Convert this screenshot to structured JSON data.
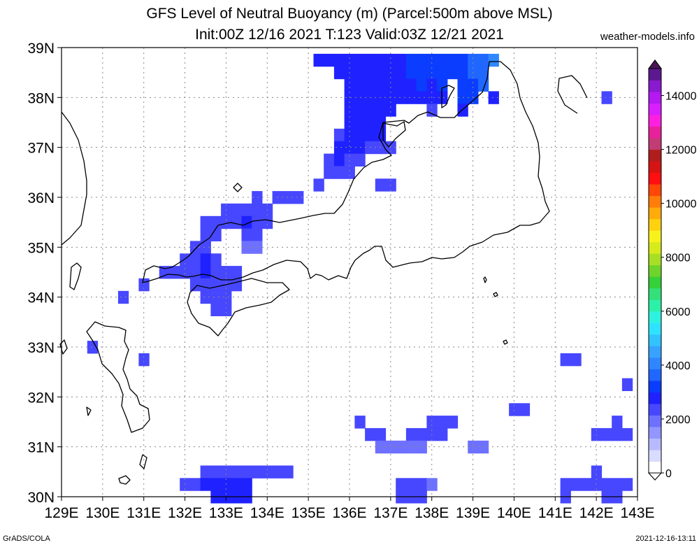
{
  "title_line1": "GFS Level of Neutral Buoyancy (m) (Parcel:500m above MSL)",
  "title_line2": "Init:00Z 12/16 2021 T:123 Valid:03Z 12/21 2021",
  "site": "weather-models.info",
  "footer_left": "GrADS/COLA",
  "footer_right": "2021-12-16-13:11",
  "chart_data": {
    "type": "heatmap",
    "x_ticks": [
      "129E",
      "130E",
      "131E",
      "132E",
      "133E",
      "134E",
      "135E",
      "136E",
      "137E",
      "138E",
      "139E",
      "140E",
      "141E",
      "142E",
      "143E"
    ],
    "y_ticks": [
      "30N",
      "31N",
      "32N",
      "33N",
      "34N",
      "35N",
      "36N",
      "37N",
      "38N",
      "39N"
    ],
    "lon_range": [
      129,
      143
    ],
    "lat_range": [
      30,
      39
    ],
    "grid": true,
    "colorbar": {
      "placement": "right",
      "min": 0,
      "max": 15000,
      "labels": [
        "0",
        "2000",
        "4000",
        "6000",
        "8000",
        "10000",
        "12000",
        "14000"
      ],
      "colors": [
        "#ffffff",
        "#d9dcff",
        "#b7baff",
        "#9396ff",
        "#6e71ff",
        "#4747ff",
        "#1f22ff",
        "#0b3dff",
        "#1f67ff",
        "#2f87ff",
        "#37a3ff",
        "#32c3ff",
        "#2ee3ff",
        "#2ef2e0",
        "#2df0a8",
        "#33e07a",
        "#35d13a",
        "#6ed32b",
        "#a8df24",
        "#d6ea1c",
        "#f7f21b",
        "#ffd10f",
        "#ffac0a",
        "#ff7d08",
        "#ff4708",
        "#ff0f0f",
        "#d61414",
        "#b01d1d",
        "#c23c74",
        "#e8209b",
        "#ff1fe0",
        "#d91fff",
        "#b319f0",
        "#8a1ad0",
        "#5c188f"
      ]
    },
    "cells": [
      {
        "lon": 135.25,
        "lat": 38.75,
        "v": 2600
      },
      {
        "lon": 135.5,
        "lat": 38.75,
        "v": 2600
      },
      {
        "lon": 135.75,
        "lat": 38.75,
        "v": 2700
      },
      {
        "lon": 136.0,
        "lat": 38.75,
        "v": 2700
      },
      {
        "lon": 136.25,
        "lat": 38.75,
        "v": 2800
      },
      {
        "lon": 136.5,
        "lat": 38.75,
        "v": 2800
      },
      {
        "lon": 136.75,
        "lat": 38.75,
        "v": 2800
      },
      {
        "lon": 137.0,
        "lat": 38.75,
        "v": 2900
      },
      {
        "lon": 137.25,
        "lat": 38.75,
        "v": 2900
      },
      {
        "lon": 137.5,
        "lat": 38.75,
        "v": 3000
      },
      {
        "lon": 137.75,
        "lat": 38.75,
        "v": 3000
      },
      {
        "lon": 138.0,
        "lat": 38.75,
        "v": 3100
      },
      {
        "lon": 138.25,
        "lat": 38.75,
        "v": 3200
      },
      {
        "lon": 138.5,
        "lat": 38.75,
        "v": 3300
      },
      {
        "lon": 138.75,
        "lat": 38.75,
        "v": 3400
      },
      {
        "lon": 139.0,
        "lat": 38.75,
        "v": 3500
      },
      {
        "lon": 139.25,
        "lat": 38.75,
        "v": 3700
      },
      {
        "lon": 139.5,
        "lat": 38.75,
        "v": 3900
      },
      {
        "lon": 135.75,
        "lat": 38.5,
        "v": 2600
      },
      {
        "lon": 136.0,
        "lat": 38.5,
        "v": 2700
      },
      {
        "lon": 136.25,
        "lat": 38.5,
        "v": 2700
      },
      {
        "lon": 136.5,
        "lat": 38.5,
        "v": 2800
      },
      {
        "lon": 136.75,
        "lat": 38.5,
        "v": 2700
      },
      {
        "lon": 137.0,
        "lat": 38.5,
        "v": 2800
      },
      {
        "lon": 137.25,
        "lat": 38.5,
        "v": 2900
      },
      {
        "lon": 137.5,
        "lat": 38.5,
        "v": 3000
      },
      {
        "lon": 137.75,
        "lat": 38.5,
        "v": 3000
      },
      {
        "lon": 138.0,
        "lat": 38.5,
        "v": 3000
      },
      {
        "lon": 138.25,
        "lat": 38.5,
        "v": 3100
      },
      {
        "lon": 138.5,
        "lat": 38.5,
        "v": 3200
      },
      {
        "lon": 138.75,
        "lat": 38.5,
        "v": 3300
      },
      {
        "lon": 139.0,
        "lat": 38.5,
        "v": 3500
      },
      {
        "lon": 139.25,
        "lat": 38.5,
        "v": 3600
      },
      {
        "lon": 136.0,
        "lat": 38.25,
        "v": 2600
      },
      {
        "lon": 136.25,
        "lat": 38.25,
        "v": 2700
      },
      {
        "lon": 136.5,
        "lat": 38.25,
        "v": 2800
      },
      {
        "lon": 136.75,
        "lat": 38.25,
        "v": 2700
      },
      {
        "lon": 137.0,
        "lat": 38.25,
        "v": 2800
      },
      {
        "lon": 137.25,
        "lat": 38.25,
        "v": 2900
      },
      {
        "lon": 137.5,
        "lat": 38.25,
        "v": 2900
      },
      {
        "lon": 137.75,
        "lat": 38.25,
        "v": 3000
      },
      {
        "lon": 138.0,
        "lat": 38.25,
        "v": 2900
      },
      {
        "lon": 138.25,
        "lat": 38.25,
        "v": 3000
      },
      {
        "lon": 138.75,
        "lat": 38.25,
        "v": 3200
      },
      {
        "lon": 139.0,
        "lat": 38.25,
        "v": 3400
      },
      {
        "lon": 139.25,
        "lat": 38.25,
        "v": 3500
      },
      {
        "lon": 136.0,
        "lat": 38.0,
        "v": 2600
      },
      {
        "lon": 136.25,
        "lat": 38.0,
        "v": 2700
      },
      {
        "lon": 136.5,
        "lat": 38.0,
        "v": 2800
      },
      {
        "lon": 136.75,
        "lat": 38.0,
        "v": 2800
      },
      {
        "lon": 137.0,
        "lat": 38.0,
        "v": 2700
      },
      {
        "lon": 137.25,
        "lat": 38.0,
        "v": 2700
      },
      {
        "lon": 137.5,
        "lat": 38.0,
        "v": 2800
      },
      {
        "lon": 137.75,
        "lat": 38.0,
        "v": 2800
      },
      {
        "lon": 138.0,
        "lat": 38.0,
        "v": 2800
      },
      {
        "lon": 138.25,
        "lat": 38.0,
        "v": 2900
      },
      {
        "lon": 138.75,
        "lat": 38.0,
        "v": 3100
      },
      {
        "lon": 139.0,
        "lat": 38.0,
        "v": 3200
      },
      {
        "lon": 139.5,
        "lat": 38.0,
        "v": 2600
      },
      {
        "lon": 142.25,
        "lat": 38.0,
        "v": 2200
      },
      {
        "lon": 136.0,
        "lat": 37.75,
        "v": 2600
      },
      {
        "lon": 136.25,
        "lat": 37.75,
        "v": 2700
      },
      {
        "lon": 136.5,
        "lat": 37.75,
        "v": 2800
      },
      {
        "lon": 136.75,
        "lat": 37.75,
        "v": 2700
      },
      {
        "lon": 137.0,
        "lat": 37.75,
        "v": 2600
      },
      {
        "lon": 138.0,
        "lat": 37.75,
        "v": 2500
      },
      {
        "lon": 138.75,
        "lat": 37.75,
        "v": 2800
      },
      {
        "lon": 136.0,
        "lat": 37.5,
        "v": 2600
      },
      {
        "lon": 136.25,
        "lat": 37.5,
        "v": 2700
      },
      {
        "lon": 136.5,
        "lat": 37.5,
        "v": 2800
      },
      {
        "lon": 136.75,
        "lat": 37.5,
        "v": 2700
      },
      {
        "lon": 135.75,
        "lat": 37.25,
        "v": 2500
      },
      {
        "lon": 136.0,
        "lat": 37.25,
        "v": 2700
      },
      {
        "lon": 136.25,
        "lat": 37.25,
        "v": 2800
      },
      {
        "lon": 136.5,
        "lat": 37.25,
        "v": 2700
      },
      {
        "lon": 136.75,
        "lat": 37.25,
        "v": 2600
      },
      {
        "lon": 135.75,
        "lat": 37.0,
        "v": 2600
      },
      {
        "lon": 136.0,
        "lat": 37.0,
        "v": 2700
      },
      {
        "lon": 136.25,
        "lat": 37.0,
        "v": 2600
      },
      {
        "lon": 136.5,
        "lat": 37.0,
        "v": 2500
      },
      {
        "lon": 136.75,
        "lat": 37.0,
        "v": 2400
      },
      {
        "lon": 137.0,
        "lat": 37.0,
        "v": 2200
      },
      {
        "lon": 135.5,
        "lat": 36.75,
        "v": 2500
      },
      {
        "lon": 135.75,
        "lat": 36.75,
        "v": 2600
      },
      {
        "lon": 136.0,
        "lat": 36.75,
        "v": 2500
      },
      {
        "lon": 136.25,
        "lat": 36.75,
        "v": 2500
      },
      {
        "lon": 135.5,
        "lat": 36.5,
        "v": 2400
      },
      {
        "lon": 135.75,
        "lat": 36.5,
        "v": 2500
      },
      {
        "lon": 136.0,
        "lat": 36.5,
        "v": 2400
      },
      {
        "lon": 135.25,
        "lat": 36.25,
        "v": 2300
      },
      {
        "lon": 136.75,
        "lat": 36.25,
        "v": 2300
      },
      {
        "lon": 137.0,
        "lat": 36.25,
        "v": 2300
      },
      {
        "lon": 134.25,
        "lat": 36.0,
        "v": 2200
      },
      {
        "lon": 134.5,
        "lat": 36.0,
        "v": 2300
      },
      {
        "lon": 134.75,
        "lat": 36.0,
        "v": 2200
      },
      {
        "lon": 133.75,
        "lat": 36.0,
        "v": 2400
      },
      {
        "lon": 133.0,
        "lat": 35.75,
        "v": 2300
      },
      {
        "lon": 133.25,
        "lat": 35.75,
        "v": 2400
      },
      {
        "lon": 133.5,
        "lat": 35.75,
        "v": 2500
      },
      {
        "lon": 133.75,
        "lat": 35.75,
        "v": 2400
      },
      {
        "lon": 134.0,
        "lat": 35.75,
        "v": 2400
      },
      {
        "lon": 132.5,
        "lat": 35.5,
        "v": 2300
      },
      {
        "lon": 132.75,
        "lat": 35.5,
        "v": 2400
      },
      {
        "lon": 133.0,
        "lat": 35.5,
        "v": 2500
      },
      {
        "lon": 133.25,
        "lat": 35.5,
        "v": 2500
      },
      {
        "lon": 133.5,
        "lat": 35.5,
        "v": 2600
      },
      {
        "lon": 133.75,
        "lat": 35.5,
        "v": 2500
      },
      {
        "lon": 134.0,
        "lat": 35.5,
        "v": 2400
      },
      {
        "lon": 132.5,
        "lat": 35.25,
        "v": 2400
      },
      {
        "lon": 132.75,
        "lat": 35.25,
        "v": 2400
      },
      {
        "lon": 133.5,
        "lat": 35.25,
        "v": 2300
      },
      {
        "lon": 133.75,
        "lat": 35.25,
        "v": 2400
      },
      {
        "lon": 132.25,
        "lat": 35.0,
        "v": 2400
      },
      {
        "lon": 132.5,
        "lat": 35.0,
        "v": 2500
      },
      {
        "lon": 133.5,
        "lat": 35.0,
        "v": 2000
      },
      {
        "lon": 133.75,
        "lat": 35.0,
        "v": 2100
      },
      {
        "lon": 132.0,
        "lat": 34.75,
        "v": 2400
      },
      {
        "lon": 132.25,
        "lat": 34.75,
        "v": 2500
      },
      {
        "lon": 132.5,
        "lat": 34.75,
        "v": 2600
      },
      {
        "lon": 132.75,
        "lat": 34.75,
        "v": 2500
      },
      {
        "lon": 131.5,
        "lat": 34.5,
        "v": 2300
      },
      {
        "lon": 131.75,
        "lat": 34.5,
        "v": 2400
      },
      {
        "lon": 132.0,
        "lat": 34.5,
        "v": 2400
      },
      {
        "lon": 132.25,
        "lat": 34.5,
        "v": 2500
      },
      {
        "lon": 132.5,
        "lat": 34.5,
        "v": 2600
      },
      {
        "lon": 132.75,
        "lat": 34.5,
        "v": 2500
      },
      {
        "lon": 133.0,
        "lat": 34.5,
        "v": 2400
      },
      {
        "lon": 133.25,
        "lat": 34.5,
        "v": 2300
      },
      {
        "lon": 131.0,
        "lat": 34.25,
        "v": 2200
      },
      {
        "lon": 132.25,
        "lat": 34.25,
        "v": 2400
      },
      {
        "lon": 132.5,
        "lat": 34.25,
        "v": 2500
      },
      {
        "lon": 132.75,
        "lat": 34.25,
        "v": 2500
      },
      {
        "lon": 133.0,
        "lat": 34.25,
        "v": 2400
      },
      {
        "lon": 133.25,
        "lat": 34.25,
        "v": 2300
      },
      {
        "lon": 130.5,
        "lat": 34.0,
        "v": 2300
      },
      {
        "lon": 132.5,
        "lat": 34.0,
        "v": 2300
      },
      {
        "lon": 132.75,
        "lat": 34.0,
        "v": 2300
      },
      {
        "lon": 133.0,
        "lat": 34.0,
        "v": 2200
      },
      {
        "lon": 132.75,
        "lat": 33.75,
        "v": 2200
      },
      {
        "lon": 133.0,
        "lat": 33.75,
        "v": 2200
      },
      {
        "lon": 129.75,
        "lat": 33.0,
        "v": 2300
      },
      {
        "lon": 131.0,
        "lat": 32.75,
        "v": 2200
      },
      {
        "lon": 141.25,
        "lat": 32.75,
        "v": 2200
      },
      {
        "lon": 141.5,
        "lat": 32.75,
        "v": 2200
      },
      {
        "lon": 142.75,
        "lat": 32.25,
        "v": 2300
      },
      {
        "lon": 140.0,
        "lat": 31.75,
        "v": 2200
      },
      {
        "lon": 140.25,
        "lat": 31.75,
        "v": 2300
      },
      {
        "lon": 136.25,
        "lat": 31.5,
        "v": 2400
      },
      {
        "lon": 138.0,
        "lat": 31.5,
        "v": 2300
      },
      {
        "lon": 138.25,
        "lat": 31.5,
        "v": 2300
      },
      {
        "lon": 138.5,
        "lat": 31.5,
        "v": 2300
      },
      {
        "lon": 136.5,
        "lat": 31.25,
        "v": 2300
      },
      {
        "lon": 136.75,
        "lat": 31.25,
        "v": 2300
      },
      {
        "lon": 137.5,
        "lat": 31.25,
        "v": 2200
      },
      {
        "lon": 137.75,
        "lat": 31.25,
        "v": 2300
      },
      {
        "lon": 138.0,
        "lat": 31.25,
        "v": 2200
      },
      {
        "lon": 138.25,
        "lat": 31.25,
        "v": 2200
      },
      {
        "lon": 142.0,
        "lat": 31.25,
        "v": 2300
      },
      {
        "lon": 142.25,
        "lat": 31.25,
        "v": 2300
      },
      {
        "lon": 142.5,
        "lat": 31.25,
        "v": 2300
      },
      {
        "lon": 142.75,
        "lat": 31.25,
        "v": 2300
      },
      {
        "lon": 142.5,
        "lat": 31.5,
        "v": 2300
      },
      {
        "lon": 136.75,
        "lat": 31.0,
        "v": 2000
      },
      {
        "lon": 137.0,
        "lat": 31.0,
        "v": 1800
      },
      {
        "lon": 137.25,
        "lat": 31.0,
        "v": 1800
      },
      {
        "lon": 137.5,
        "lat": 31.0,
        "v": 1900
      },
      {
        "lon": 137.75,
        "lat": 31.0,
        "v": 2100
      },
      {
        "lon": 139.0,
        "lat": 31.0,
        "v": 2100
      },
      {
        "lon": 139.25,
        "lat": 31.0,
        "v": 2000
      },
      {
        "lon": 132.5,
        "lat": 30.5,
        "v": 2500
      },
      {
        "lon": 132.75,
        "lat": 30.5,
        "v": 2500
      },
      {
        "lon": 133.0,
        "lat": 30.5,
        "v": 2500
      },
      {
        "lon": 133.25,
        "lat": 30.5,
        "v": 2500
      },
      {
        "lon": 133.5,
        "lat": 30.5,
        "v": 2400
      },
      {
        "lon": 133.75,
        "lat": 30.5,
        "v": 2400
      },
      {
        "lon": 134.0,
        "lat": 30.5,
        "v": 2300
      },
      {
        "lon": 134.25,
        "lat": 30.5,
        "v": 2300
      },
      {
        "lon": 134.5,
        "lat": 30.5,
        "v": 2200
      },
      {
        "lon": 132.0,
        "lat": 30.25,
        "v": 2500
      },
      {
        "lon": 132.25,
        "lat": 30.25,
        "v": 2500
      },
      {
        "lon": 132.5,
        "lat": 30.25,
        "v": 2600
      },
      {
        "lon": 132.75,
        "lat": 30.25,
        "v": 2600
      },
      {
        "lon": 133.0,
        "lat": 30.25,
        "v": 2600
      },
      {
        "lon": 133.25,
        "lat": 30.25,
        "v": 2600
      },
      {
        "lon": 133.5,
        "lat": 30.25,
        "v": 2600
      },
      {
        "lon": 132.75,
        "lat": 30.0,
        "v": 2600
      },
      {
        "lon": 133.0,
        "lat": 30.0,
        "v": 2600
      },
      {
        "lon": 133.25,
        "lat": 30.0,
        "v": 2600
      },
      {
        "lon": 133.5,
        "lat": 30.0,
        "v": 2600
      },
      {
        "lon": 137.25,
        "lat": 30.25,
        "v": 2300
      },
      {
        "lon": 137.5,
        "lat": 30.25,
        "v": 2300
      },
      {
        "lon": 137.75,
        "lat": 30.25,
        "v": 2200
      },
      {
        "lon": 138.0,
        "lat": 30.25,
        "v": 2000
      },
      {
        "lon": 137.25,
        "lat": 30.0,
        "v": 2300
      },
      {
        "lon": 137.5,
        "lat": 30.0,
        "v": 2300
      },
      {
        "lon": 137.75,
        "lat": 30.0,
        "v": 2400
      },
      {
        "lon": 141.25,
        "lat": 30.25,
        "v": 2200
      },
      {
        "lon": 141.5,
        "lat": 30.25,
        "v": 2200
      },
      {
        "lon": 141.75,
        "lat": 30.25,
        "v": 2200
      },
      {
        "lon": 142.0,
        "lat": 30.25,
        "v": 2200
      },
      {
        "lon": 142.25,
        "lat": 30.25,
        "v": 2200
      },
      {
        "lon": 142.5,
        "lat": 30.25,
        "v": 2200
      },
      {
        "lon": 142.75,
        "lat": 30.25,
        "v": 2200
      },
      {
        "lon": 142.0,
        "lat": 30.5,
        "v": 2200
      },
      {
        "lon": 141.25,
        "lat": 30.0,
        "v": 2200
      },
      {
        "lon": 142.25,
        "lat": 30.0,
        "v": 2300
      },
      {
        "lon": 142.5,
        "lat": 30.0,
        "v": 2300
      }
    ]
  }
}
